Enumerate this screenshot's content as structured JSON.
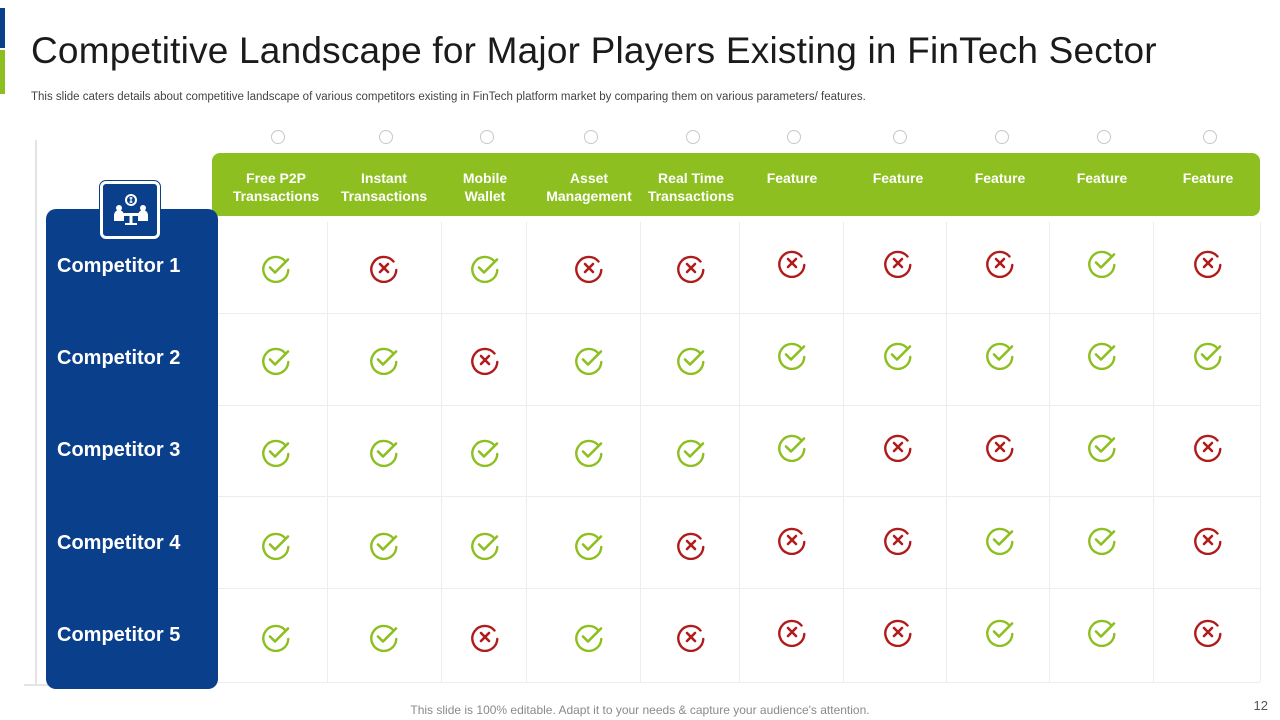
{
  "title": "Competitive Landscape for Major Players Existing in FinTech Sector",
  "subtitle": "This slide caters details about competitive landscape of various competitors existing in FinTech  platform  market by comparing them on various  parameters/  features.",
  "colors": {
    "blue": "#0a3f8c",
    "green": "#8cbf1f",
    "check": "#8cbf1f",
    "cross": "#b01c1c"
  },
  "header_icon": "business-meeting-icon",
  "features": [
    [
      "Free P2P",
      "Transactions"
    ],
    [
      "Instant",
      "Transactions"
    ],
    [
      "Mobile",
      "Wallet"
    ],
    [
      "Asset",
      "Management"
    ],
    [
      "Real Time",
      "Transactions"
    ],
    [
      "Feature"
    ],
    [
      "Feature"
    ],
    [
      "Feature"
    ],
    [
      "Feature"
    ],
    [
      "Feature"
    ]
  ],
  "competitors": [
    {
      "name": "Competitor 1",
      "values": [
        true,
        false,
        true,
        false,
        false,
        false,
        false,
        false,
        true,
        false
      ]
    },
    {
      "name": "Competitor 2",
      "values": [
        true,
        true,
        false,
        true,
        true,
        true,
        true,
        true,
        true,
        true
      ]
    },
    {
      "name": "Competitor 3",
      "values": [
        true,
        true,
        true,
        true,
        true,
        true,
        false,
        false,
        true,
        false
      ]
    },
    {
      "name": "Competitor 4",
      "values": [
        true,
        true,
        true,
        true,
        false,
        false,
        false,
        true,
        true,
        false
      ]
    },
    {
      "name": "Competitor 5",
      "values": [
        true,
        true,
        false,
        true,
        false,
        false,
        false,
        true,
        true,
        false
      ]
    }
  ],
  "footer": "This slide is 100% editable. Adapt it to your needs & capture your audience's attention.",
  "page_number": "12"
}
